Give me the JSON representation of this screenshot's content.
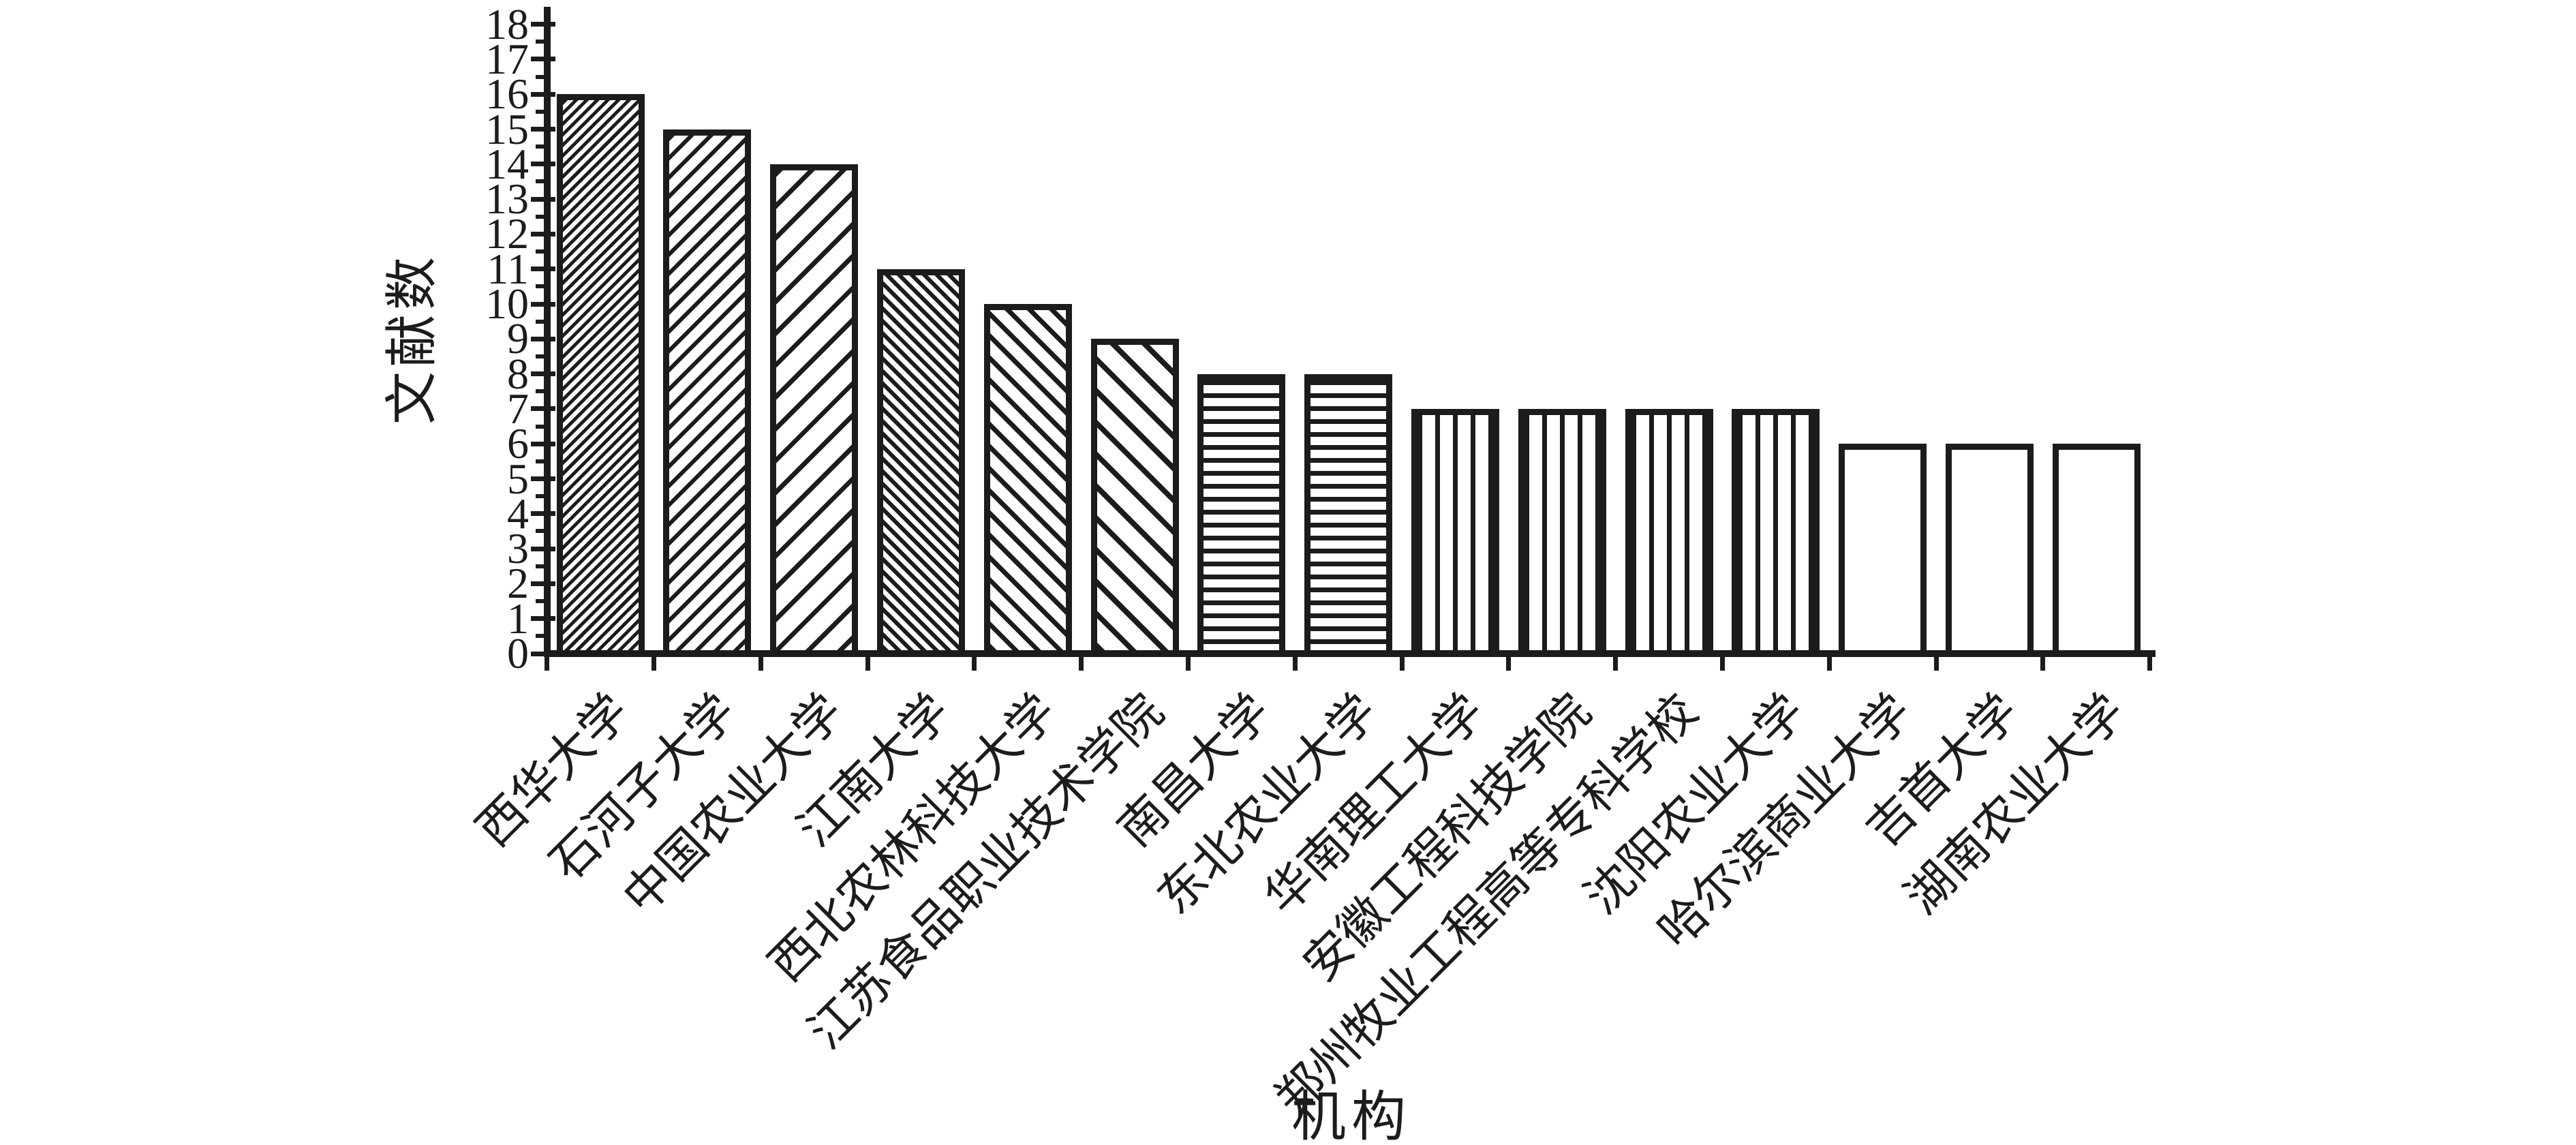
{
  "chart_data": {
    "type": "bar",
    "title": "",
    "xlabel": "机构",
    "ylabel": "文献数",
    "ylim": [
      0,
      18
    ],
    "y_major_tick_step": 1,
    "y_minor_tick_step": 0.5,
    "grid": false,
    "legend": "none",
    "bar_fill_color": "#ffffff",
    "line_color": "#1c1c1c",
    "y_tick_labels": [
      "0",
      "1",
      "2",
      "3",
      "4",
      "5",
      "6",
      "7",
      "8",
      "9",
      "10",
      "11",
      "12",
      "13",
      "14",
      "15",
      "16",
      "17",
      "18"
    ],
    "categories": [
      "西华大学",
      "石河子大学",
      "中国农业大学",
      "江南大学",
      "西北农林科技大学",
      "江苏食品职业技术学院",
      "南昌大学",
      "东北农业大学",
      "华南理工大学",
      "安徽工程科技学院",
      "郑州牧业工程高等专科学校",
      "沈阳农业大学",
      "哈尔滨商业大学",
      "吉首大学",
      "湖南农业大学"
    ],
    "values": [
      16,
      15,
      14,
      11,
      10,
      9,
      8,
      8,
      7,
      7,
      7,
      7,
      6,
      6,
      6
    ],
    "patterns": [
      "diag-up-dense",
      "diag-up-medium",
      "diag-up-wide",
      "diag-down-dense",
      "diag-down-medium",
      "diag-down-wide",
      "horizontal",
      "horizontal",
      "vertical",
      "vertical",
      "vertical",
      "vertical",
      "plain",
      "plain",
      "plain"
    ]
  }
}
